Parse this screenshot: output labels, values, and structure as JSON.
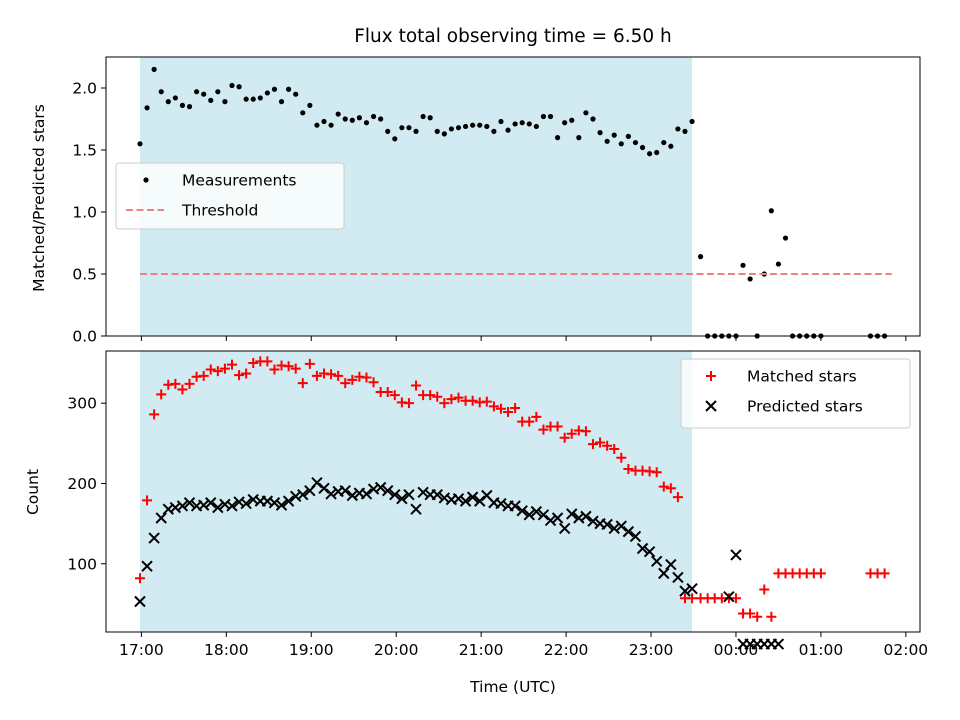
{
  "colors": {
    "shade": "#add8e6",
    "threshold": "#f08080",
    "matched": "#ff0000",
    "predicted": "#000000",
    "measurement": "#000000"
  },
  "chart_data": [
    {
      "type": "scatter",
      "title": "Flux total observing time = 6.50 h",
      "xlabel": "",
      "ylabel": "Matched/Predicted stars",
      "xlim": [
        "16:35",
        "02:10"
      ],
      "ylim": [
        0,
        2.25
      ],
      "yticks": [
        "0.0",
        "0.5",
        "1.0",
        "1.5",
        "2.0"
      ],
      "shaded_span": [
        "16:59",
        "23:29"
      ],
      "legend_position": "center-left",
      "series": [
        {
          "name": "Measurements",
          "marker": "dot",
          "x": [
            "16:59",
            "17:04",
            "17:09",
            "17:14",
            "17:19",
            "17:24",
            "17:29",
            "17:34",
            "17:39",
            "17:44",
            "17:49",
            "17:54",
            "17:59",
            "18:04",
            "18:09",
            "18:14",
            "18:19",
            "18:24",
            "18:29",
            "18:34",
            "18:39",
            "18:44",
            "18:49",
            "18:54",
            "18:59",
            "19:04",
            "19:09",
            "19:14",
            "19:19",
            "19:24",
            "19:29",
            "19:34",
            "19:39",
            "19:44",
            "19:49",
            "19:54",
            "19:59",
            "20:04",
            "20:09",
            "20:14",
            "20:19",
            "20:24",
            "20:29",
            "20:34",
            "20:39",
            "20:44",
            "20:49",
            "20:54",
            "20:59",
            "21:04",
            "21:09",
            "21:14",
            "21:19",
            "21:24",
            "21:29",
            "21:34",
            "21:39",
            "21:44",
            "21:49",
            "21:54",
            "21:59",
            "22:04",
            "22:09",
            "22:14",
            "22:19",
            "22:24",
            "22:29",
            "22:34",
            "22:39",
            "22:44",
            "22:49",
            "22:54",
            "22:59",
            "23:04",
            "23:09",
            "23:14",
            "23:19",
            "23:24",
            "23:29",
            "23:35",
            "23:40",
            "23:45",
            "23:50",
            "23:55",
            "00:00",
            "00:05",
            "00:10",
            "00:15",
            "00:20",
            "00:25",
            "00:30",
            "00:35",
            "00:40",
            "00:45",
            "00:50",
            "00:55",
            "01:00",
            "01:35",
            "01:40",
            "01:45"
          ],
          "values": [
            1.55,
            1.84,
            2.15,
            1.97,
            1.89,
            1.92,
            1.86,
            1.85,
            1.97,
            1.95,
            1.9,
            1.97,
            1.89,
            2.02,
            2.01,
            1.91,
            1.91,
            1.92,
            1.96,
            1.99,
            1.89,
            1.99,
            1.95,
            1.8,
            1.86,
            1.7,
            1.73,
            1.7,
            1.79,
            1.75,
            1.74,
            1.76,
            1.72,
            1.77,
            1.75,
            1.65,
            1.59,
            1.68,
            1.68,
            1.65,
            1.77,
            1.76,
            1.65,
            1.63,
            1.67,
            1.68,
            1.69,
            1.7,
            1.7,
            1.69,
            1.65,
            1.73,
            1.66,
            1.71,
            1.72,
            1.71,
            1.69,
            1.77,
            1.77,
            1.6,
            1.72,
            1.74,
            1.6,
            1.8,
            1.75,
            1.64,
            1.57,
            1.62,
            1.55,
            1.61,
            1.56,
            1.52,
            1.47,
            1.48,
            1.56,
            1.53,
            1.67,
            1.65,
            1.73,
            0.64,
            0,
            0,
            0,
            0,
            0,
            0.57,
            0.46,
            0,
            0.5,
            1.01,
            0.58,
            0.79,
            0,
            0,
            0,
            0,
            0,
            0,
            0,
            0
          ]
        },
        {
          "name": "Threshold",
          "style": "dashed",
          "x": [
            "16:59",
            "23:29",
            "01:50"
          ],
          "values": [
            0.5,
            0.5,
            0.5
          ]
        }
      ]
    },
    {
      "type": "scatter",
      "xlabel": "Time (UTC)",
      "ylabel": "Count",
      "xlim": [
        "16:35",
        "02:10"
      ],
      "ylim": [
        15,
        365
      ],
      "xticks": [
        "17:00",
        "18:00",
        "19:00",
        "20:00",
        "21:00",
        "22:00",
        "23:00",
        "00:00",
        "01:00",
        "02:00"
      ],
      "yticks": [
        "100",
        "200",
        "300"
      ],
      "shaded_span": [
        "16:59",
        "23:29"
      ],
      "legend_position": "upper-right",
      "series": [
        {
          "name": "Matched stars",
          "marker": "plus",
          "x": [
            "16:59",
            "17:04",
            "17:09",
            "17:14",
            "17:19",
            "17:24",
            "17:29",
            "17:34",
            "17:39",
            "17:44",
            "17:49",
            "17:54",
            "17:59",
            "18:04",
            "18:09",
            "18:14",
            "18:19",
            "18:24",
            "18:29",
            "18:34",
            "18:39",
            "18:44",
            "18:49",
            "18:54",
            "18:59",
            "19:04",
            "19:09",
            "19:14",
            "19:19",
            "19:24",
            "19:29",
            "19:34",
            "19:39",
            "19:44",
            "19:49",
            "19:54",
            "19:59",
            "20:04",
            "20:09",
            "20:14",
            "20:19",
            "20:24",
            "20:29",
            "20:34",
            "20:39",
            "20:44",
            "20:49",
            "20:54",
            "20:59",
            "21:04",
            "21:09",
            "21:14",
            "21:19",
            "21:24",
            "21:29",
            "21:34",
            "21:39",
            "21:44",
            "21:49",
            "21:54",
            "21:59",
            "22:04",
            "22:09",
            "22:14",
            "22:19",
            "22:24",
            "22:29",
            "22:34",
            "22:39",
            "22:44",
            "22:49",
            "22:54",
            "22:59",
            "23:04",
            "23:09",
            "23:14",
            "23:19",
            "23:24",
            "23:29",
            "23:35",
            "23:40",
            "23:45",
            "23:50",
            "23:55",
            "00:00",
            "00:05",
            "00:10",
            "00:15",
            "00:20",
            "00:25",
            "00:30",
            "00:35",
            "00:40",
            "00:45",
            "00:50",
            "00:55",
            "01:00",
            "01:35",
            "01:40",
            "01:45"
          ],
          "values": [
            82,
            179,
            286,
            311,
            323,
            324,
            317,
            324,
            333,
            334,
            342,
            340,
            343,
            348,
            335,
            337,
            350,
            352,
            352,
            342,
            347,
            346,
            343,
            325,
            349,
            334,
            337,
            336,
            334,
            325,
            329,
            333,
            332,
            326,
            314,
            314,
            310,
            301,
            300,
            322,
            310,
            310,
            308,
            300,
            305,
            307,
            303,
            303,
            301,
            302,
            296,
            293,
            289,
            294,
            277,
            277,
            283,
            267,
            271,
            271,
            257,
            262,
            266,
            265,
            249,
            251,
            247,
            243,
            232,
            218,
            216,
            216,
            215,
            214,
            196,
            194,
            183,
            57,
            57,
            57,
            57,
            57,
            57,
            57,
            57,
            38,
            38,
            34,
            68,
            34,
            88,
            88,
            88,
            88,
            88,
            88,
            88,
            88,
            88,
            88
          ]
        },
        {
          "name": "Predicted stars",
          "marker": "x",
          "x": [
            "16:59",
            "17:04",
            "17:09",
            "17:14",
            "17:19",
            "17:24",
            "17:29",
            "17:34",
            "17:39",
            "17:44",
            "17:49",
            "17:54",
            "17:59",
            "18:04",
            "18:09",
            "18:14",
            "18:19",
            "18:24",
            "18:29",
            "18:34",
            "18:39",
            "18:44",
            "18:49",
            "18:54",
            "18:59",
            "19:04",
            "19:09",
            "19:14",
            "19:19",
            "19:24",
            "19:29",
            "19:34",
            "19:39",
            "19:44",
            "19:49",
            "19:54",
            "19:59",
            "20:04",
            "20:09",
            "20:14",
            "20:19",
            "20:24",
            "20:29",
            "20:34",
            "20:39",
            "20:44",
            "20:49",
            "20:54",
            "20:59",
            "21:04",
            "21:09",
            "21:14",
            "21:19",
            "21:24",
            "21:29",
            "21:34",
            "21:39",
            "21:44",
            "21:49",
            "21:54",
            "21:59",
            "22:04",
            "22:09",
            "22:14",
            "22:19",
            "22:24",
            "22:29",
            "22:34",
            "22:39",
            "22:44",
            "22:49",
            "22:54",
            "22:59",
            "23:04",
            "23:09",
            "23:14",
            "23:19",
            "23:24",
            "23:29",
            "23:55",
            "00:00",
            "00:05",
            "00:10",
            "00:15",
            "00:20",
            "00:25",
            "00:30"
          ],
          "values": [
            53,
            97,
            132,
            157,
            168,
            170,
            172,
            176,
            172,
            173,
            176,
            170,
            174,
            172,
            177,
            175,
            180,
            178,
            178,
            176,
            173,
            178,
            184,
            186,
            191,
            201,
            194,
            187,
            190,
            191,
            185,
            188,
            187,
            193,
            195,
            191,
            186,
            181,
            186,
            168,
            189,
            186,
            186,
            182,
            180,
            181,
            178,
            183,
            178,
            185,
            176,
            175,
            172,
            172,
            166,
            161,
            165,
            161,
            154,
            157,
            144,
            162,
            157,
            159,
            153,
            150,
            149,
            144,
            147,
            140,
            134,
            119,
            115,
            103,
            88,
            99,
            83,
            66,
            69,
            59,
            111,
            0,
            0,
            0,
            0,
            0,
            0
          ]
        }
      ]
    }
  ]
}
